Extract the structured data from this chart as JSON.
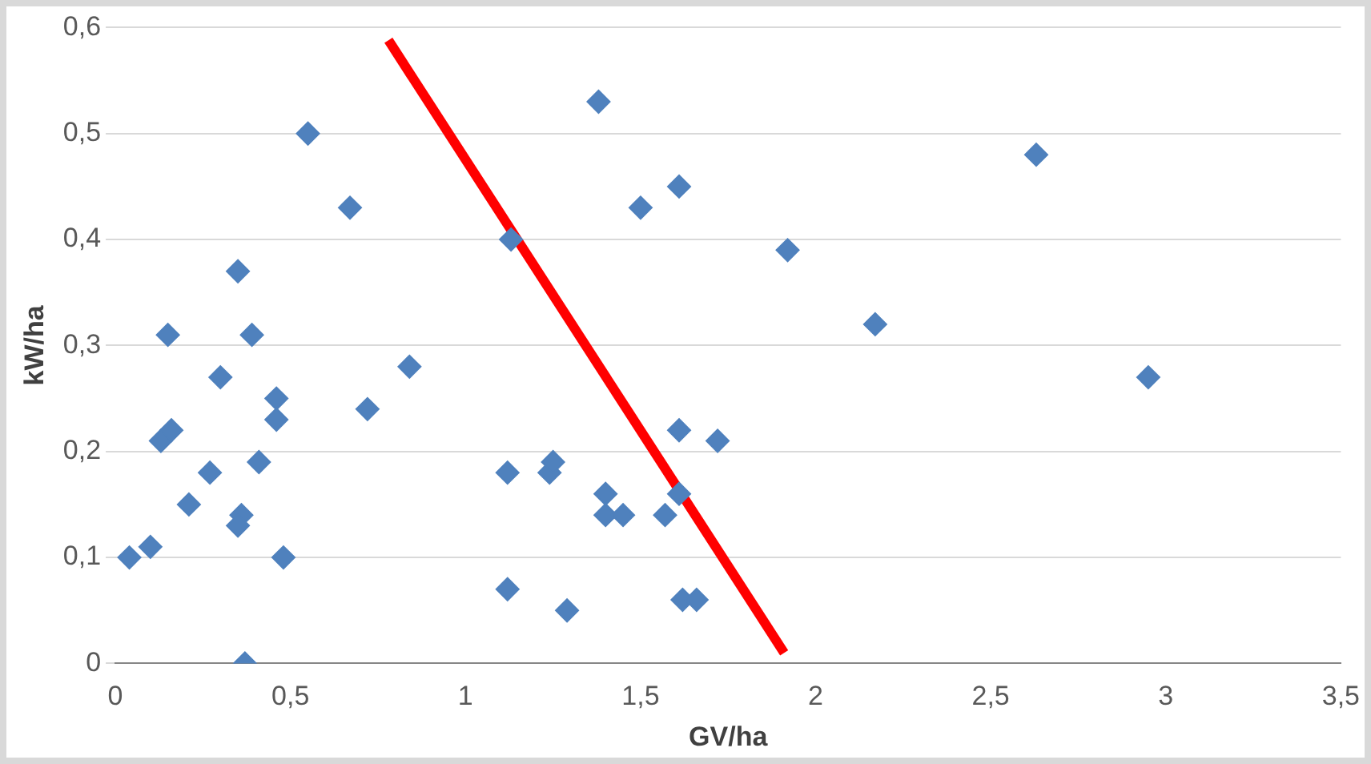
{
  "chart_data": {
    "type": "scatter",
    "xlabel": "GV/ha",
    "ylabel": "kW/ha",
    "grid": "y",
    "legend": false,
    "marker": "diamond",
    "xlim": [
      0,
      3.5
    ],
    "ylim": [
      0,
      0.6
    ],
    "xticks": [
      0,
      {
        "value": 0.5,
        "label": "0,5"
      },
      1,
      {
        "value": 1.5,
        "label": "1,5"
      },
      2,
      {
        "value": 2.5,
        "label": "2,5"
      },
      3,
      {
        "value": 3.5,
        "label": "3,5"
      }
    ],
    "yticks": [
      0,
      {
        "value": 0.1,
        "label": "0,1"
      },
      {
        "value": 0.2,
        "label": "0,2"
      },
      {
        "value": 0.3,
        "label": "0,3"
      },
      {
        "value": 0.4,
        "label": "0,4"
      },
      {
        "value": 0.5,
        "label": "0,5"
      },
      {
        "value": 0.6,
        "label": "0,6"
      }
    ],
    "series": [
      {
        "color": "#4f81bd",
        "x": [
          0.04,
          0.1,
          0.13,
          0.15,
          0.16,
          0.21,
          0.3,
          0.27,
          0.35,
          0.36,
          0.35,
          0.37,
          0.39,
          0.41,
          0.46,
          0.46,
          0.48,
          0.55,
          0.67,
          0.72,
          0.84,
          1.12,
          1.12,
          1.13,
          1.24,
          1.25,
          1.29,
          1.38,
          1.4,
          1.4,
          1.45,
          1.5,
          1.57,
          1.61,
          1.61,
          1.61,
          1.62,
          1.66,
          1.72,
          1.92,
          2.17,
          2.63,
          2.95
        ],
        "values": [
          0.1,
          0.11,
          0.21,
          0.31,
          0.22,
          0.15,
          0.27,
          0.18,
          0.37,
          0.14,
          0.13,
          0.0,
          0.31,
          0.19,
          0.25,
          0.23,
          0.1,
          0.5,
          0.43,
          0.24,
          0.28,
          0.18,
          0.07,
          0.4,
          0.18,
          0.19,
          0.05,
          0.53,
          0.16,
          0.14,
          0.14,
          0.43,
          0.14,
          0.45,
          0.22,
          0.16,
          0.06,
          0.06,
          0.21,
          0.39,
          0.32,
          0.48,
          0.27
        ]
      },
      {
        "type": "line",
        "color": "#ff0000",
        "marker": "none",
        "line_style": "solid",
        "x": [
          0.78,
          1.91
        ],
        "values": [
          0.588,
          0.01
        ]
      }
    ]
  }
}
